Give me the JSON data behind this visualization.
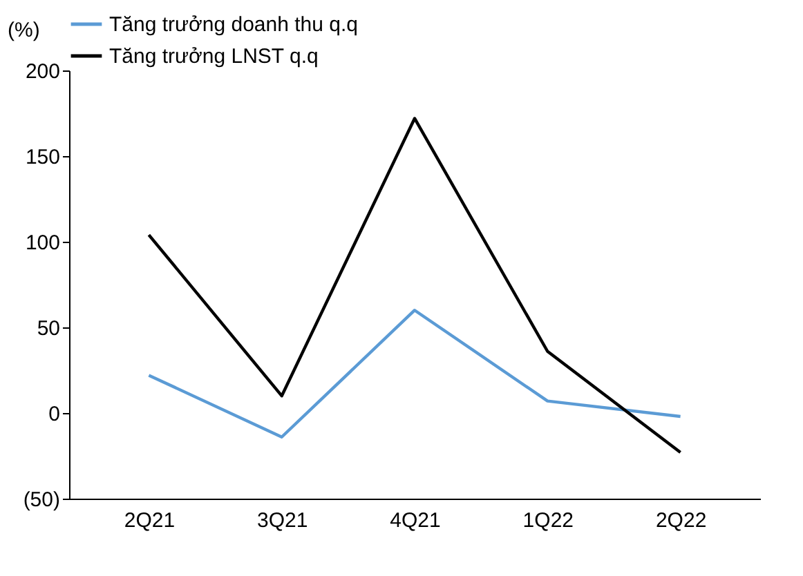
{
  "chart_data": {
    "type": "line",
    "ylabel": "(%)",
    "categories": [
      "2Q21",
      "3Q21",
      "4Q21",
      "1Q22",
      "2Q22"
    ],
    "series": [
      {
        "name": "Tăng trưởng doanh thu q.q",
        "color": "#5b9bd5",
        "values": [
          22,
          -14,
          60,
          7,
          -2
        ]
      },
      {
        "name": "Tăng trưởng LNST q.q",
        "color": "#000000",
        "values": [
          104,
          10,
          172,
          36,
          -23
        ]
      }
    ],
    "ylim": [
      -50,
      200
    ],
    "yticks": [
      {
        "value": -50,
        "label": "(50)"
      },
      0,
      50,
      100,
      150,
      200
    ],
    "grid": false,
    "legend": "top",
    "marker": "none",
    "line_style": "solid"
  }
}
